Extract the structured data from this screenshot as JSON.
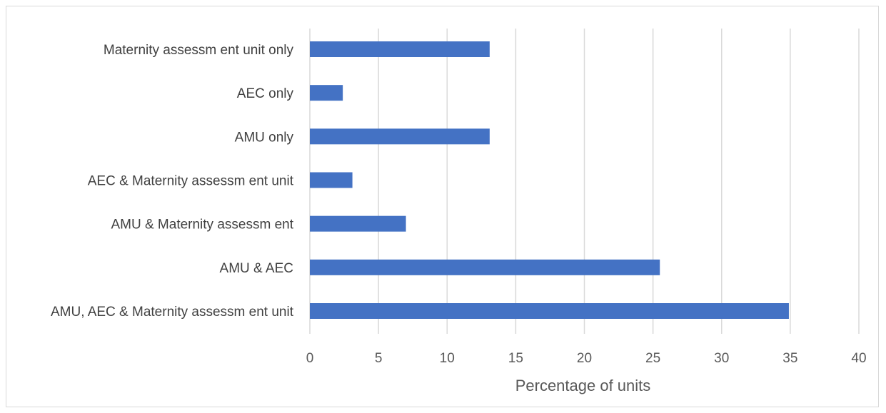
{
  "chart_data": {
    "type": "bar",
    "orientation": "horizontal",
    "categories": [
      "Maternity assessm ent unit only",
      "AEC only",
      "AMU only",
      "AEC & Maternity assessm ent unit",
      "AMU & Maternity assessm ent",
      "AMU & AEC",
      "AMU, AEC & Maternity assessm ent unit"
    ],
    "values": [
      13.1,
      2.4,
      13.1,
      3.1,
      7.0,
      25.5,
      34.9
    ],
    "xlabel": "Percentage of units",
    "ylabel": "",
    "xlim": [
      0,
      40
    ],
    "xticks": [
      0,
      5,
      10,
      15,
      20,
      25,
      30,
      35,
      40
    ],
    "grid": "vertical",
    "legend": "none",
    "bar_color": "#4472c4",
    "grid_color": "#d9d9d9"
  }
}
